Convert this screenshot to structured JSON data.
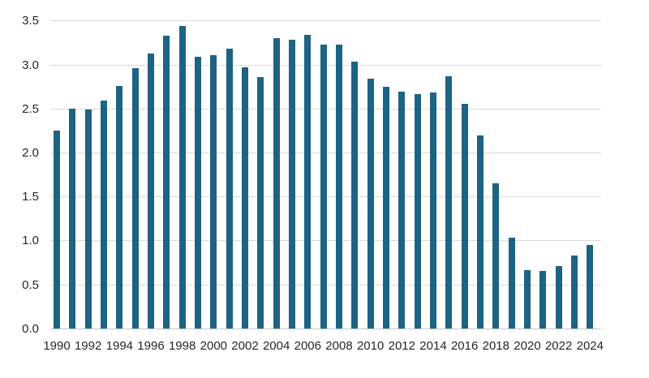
{
  "chart_data": {
    "type": "bar",
    "title": "",
    "xlabel": "",
    "ylabel": "",
    "categories": [
      "1990",
      "1991",
      "1992",
      "1993",
      "1994",
      "1995",
      "1996",
      "1997",
      "1998",
      "1999",
      "2000",
      "2001",
      "2002",
      "2003",
      "2004",
      "2005",
      "2006",
      "2007",
      "2008",
      "2009",
      "2010",
      "2011",
      "2012",
      "2013",
      "2014",
      "2015",
      "2016",
      "2017",
      "2018",
      "2019",
      "2020",
      "2021",
      "2022",
      "2023",
      "2024"
    ],
    "values": [
      2.25,
      2.5,
      2.49,
      2.59,
      2.76,
      2.96,
      3.13,
      3.33,
      3.44,
      3.09,
      3.11,
      3.18,
      2.97,
      2.86,
      3.3,
      3.29,
      3.34,
      3.23,
      3.23,
      3.04,
      2.84,
      2.75,
      2.7,
      2.67,
      2.69,
      2.87,
      2.56,
      2.2,
      1.65,
      1.04,
      0.67,
      0.66,
      0.71,
      0.83,
      0.95
    ],
    "x_tick_labels": [
      "1990",
      "1992",
      "1994",
      "1996",
      "1998",
      "2000",
      "2002",
      "2004",
      "2006",
      "2008",
      "2010",
      "2012",
      "2014",
      "2016",
      "2018",
      "2020",
      "2022",
      "2024"
    ],
    "y_tick_labels": [
      "0.0",
      "0.5",
      "1.0",
      "1.5",
      "2.0",
      "2.5",
      "3.0",
      "3.5"
    ],
    "ylim": [
      0,
      3.5
    ],
    "grid": "horizontal",
    "legend": "none",
    "colors": {
      "bar": "#1d6384",
      "gridline": "#d9d9d9",
      "axis_line": "#c9c9c9",
      "text": "#262626"
    }
  }
}
